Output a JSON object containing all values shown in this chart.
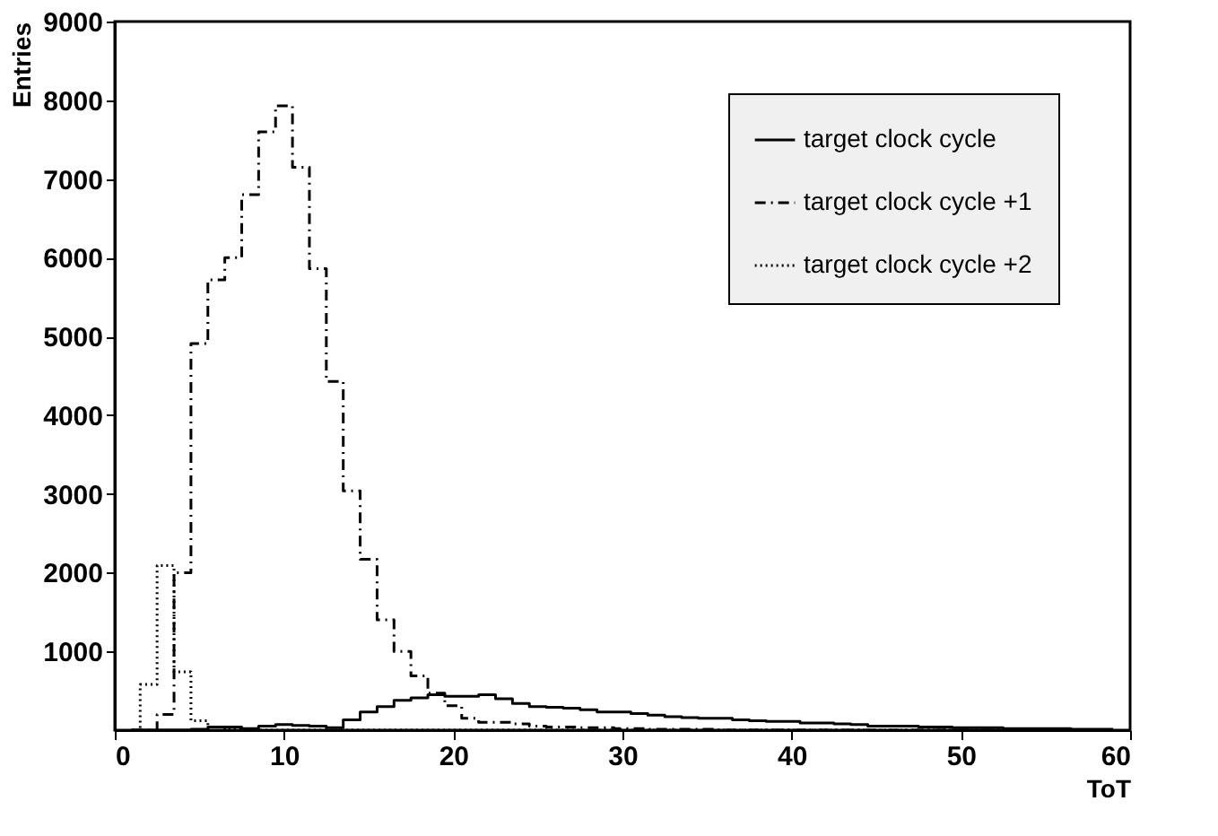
{
  "chart_data": {
    "type": "step",
    "xlabel": "ToT",
    "ylabel": "Entries",
    "x": [
      1,
      2,
      3,
      4,
      5,
      6,
      7,
      8,
      9,
      10,
      11,
      12,
      13,
      14,
      15,
      16,
      17,
      18,
      19,
      20,
      21,
      22,
      23,
      24,
      25,
      26,
      27,
      28,
      29,
      30,
      31,
      32,
      33,
      34,
      35,
      36,
      37,
      38,
      39,
      40,
      41,
      42,
      43,
      44,
      45,
      46,
      47,
      48,
      49,
      50,
      51,
      52,
      53,
      54,
      55,
      56,
      57,
      58,
      59
    ],
    "series": [
      {
        "name": "target clock cycle",
        "color": "#000000",
        "line_style": "solid",
        "values": [
          0,
          0,
          0,
          0,
          10,
          40,
          40,
          20,
          50,
          70,
          60,
          50,
          30,
          130,
          230,
          300,
          380,
          410,
          450,
          430,
          430,
          450,
          400,
          340,
          300,
          290,
          280,
          260,
          230,
          230,
          210,
          190,
          170,
          160,
          150,
          150,
          130,
          120,
          110,
          110,
          90,
          90,
          80,
          70,
          50,
          50,
          50,
          40,
          40,
          30,
          30,
          30,
          20,
          20,
          20,
          20,
          10,
          10,
          10
        ]
      },
      {
        "name": "target clock cycle +1",
        "color": "#000000",
        "line_style": "dashed",
        "values": [
          0,
          0,
          200,
          2000,
          4910,
          5720,
          6000,
          6800,
          7600,
          7930,
          7150,
          5860,
          4430,
          3040,
          2170,
          1400,
          1000,
          690,
          470,
          310,
          150,
          100,
          100,
          80,
          50,
          40,
          40,
          30,
          30,
          20,
          20,
          10,
          10,
          10,
          10,
          0,
          0,
          0,
          0,
          0,
          0,
          0,
          0,
          0,
          0,
          0,
          0,
          0,
          0,
          0,
          0,
          0,
          0,
          0,
          0,
          0,
          0,
          0,
          0
        ]
      },
      {
        "name": "target clock cycle +2",
        "color": "#000000",
        "line_style": "dotted",
        "values": [
          0,
          580,
          2090,
          740,
          120,
          40,
          10,
          0,
          0,
          0,
          0,
          0,
          0,
          0,
          0,
          0,
          0,
          0,
          0,
          0,
          0,
          0,
          0,
          0,
          0,
          0,
          0,
          0,
          0,
          0,
          0,
          0,
          0,
          0,
          0,
          0,
          0,
          0,
          0,
          0,
          0,
          0,
          0,
          0,
          0,
          0,
          0,
          0,
          0,
          0,
          0,
          0,
          0,
          0,
          0,
          0,
          0,
          0,
          0
        ]
      }
    ],
    "xlim": [
      0,
      60
    ],
    "xticks": [
      0,
      10,
      20,
      30,
      40,
      50,
      60
    ],
    "ylim": [
      0,
      9000
    ],
    "yticks": [
      1000,
      2000,
      3000,
      4000,
      5000,
      6000,
      7000,
      8000,
      9000
    ],
    "grid": false,
    "legend": "top right"
  }
}
